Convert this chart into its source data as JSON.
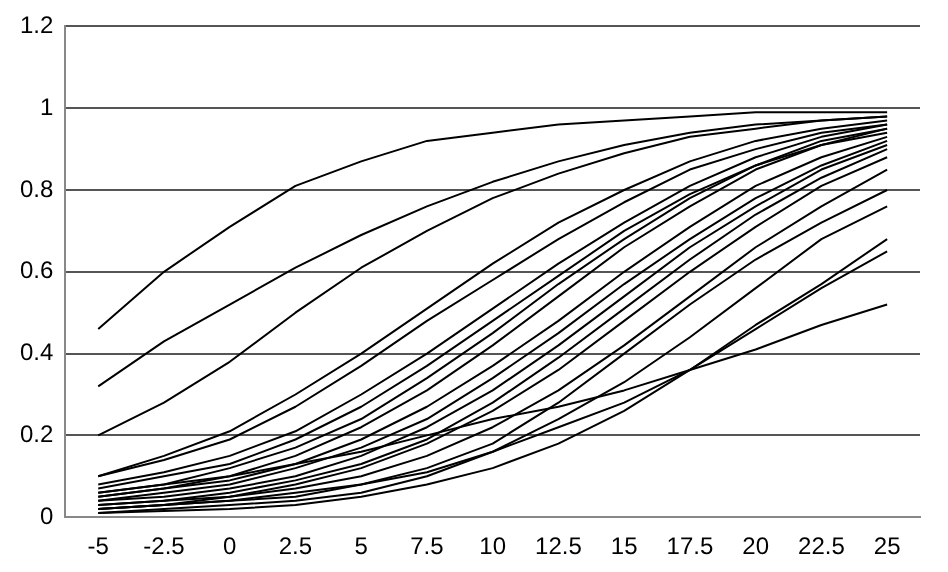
{
  "chart_data": {
    "type": "line",
    "categories": [
      "-5",
      "-2.5",
      "0",
      "2.5",
      "5",
      "7.5",
      "10",
      "12.5",
      "15",
      "17.5",
      "20",
      "22.5",
      "25"
    ],
    "ylim": [
      0,
      1.2
    ],
    "yticks": [
      0,
      0.2,
      0.4,
      0.6,
      0.8,
      1,
      1.2
    ],
    "grid": "y",
    "legend": false,
    "marker": "none",
    "line_style": "solid",
    "series": [
      {
        "color": "#000000",
        "values": [
          0.46,
          0.6,
          0.71,
          0.81,
          0.87,
          0.92,
          0.94,
          0.96,
          0.97,
          0.98,
          0.99,
          0.99,
          0.99
        ]
      },
      {
        "color": "#000000",
        "values": [
          0.32,
          0.43,
          0.52,
          0.61,
          0.69,
          0.76,
          0.82,
          0.87,
          0.91,
          0.94,
          0.96,
          0.97,
          0.98
        ]
      },
      {
        "color": "#000000",
        "values": [
          0.2,
          0.28,
          0.38,
          0.5,
          0.61,
          0.7,
          0.78,
          0.84,
          0.89,
          0.93,
          0.95,
          0.97,
          0.98
        ]
      },
      {
        "color": "#000000",
        "values": [
          0.1,
          0.15,
          0.21,
          0.3,
          0.4,
          0.51,
          0.62,
          0.72,
          0.8,
          0.87,
          0.92,
          0.95,
          0.97
        ]
      },
      {
        "color": "#000000",
        "values": [
          0.1,
          0.14,
          0.19,
          0.27,
          0.37,
          0.48,
          0.58,
          0.68,
          0.77,
          0.85,
          0.9,
          0.94,
          0.96
        ]
      },
      {
        "color": "#000000",
        "values": [
          0.08,
          0.11,
          0.15,
          0.21,
          0.3,
          0.4,
          0.51,
          0.62,
          0.72,
          0.81,
          0.88,
          0.93,
          0.96
        ]
      },
      {
        "color": "#000000",
        "values": [
          0.07,
          0.1,
          0.13,
          0.19,
          0.27,
          0.37,
          0.48,
          0.59,
          0.7,
          0.79,
          0.86,
          0.92,
          0.95
        ]
      },
      {
        "color": "#000000",
        "values": [
          0.06,
          0.08,
          0.12,
          0.17,
          0.24,
          0.34,
          0.45,
          0.57,
          0.68,
          0.78,
          0.86,
          0.91,
          0.95
        ]
      },
      {
        "color": "#000000",
        "values": [
          0.05,
          0.07,
          0.1,
          0.15,
          0.22,
          0.31,
          0.42,
          0.54,
          0.66,
          0.76,
          0.85,
          0.91,
          0.94
        ]
      },
      {
        "color": "#000000",
        "values": [
          0.05,
          0.07,
          0.09,
          0.13,
          0.19,
          0.27,
          0.37,
          0.48,
          0.6,
          0.71,
          0.81,
          0.88,
          0.93
        ]
      },
      {
        "color": "#000000",
        "values": [
          0.04,
          0.06,
          0.08,
          0.12,
          0.17,
          0.24,
          0.34,
          0.45,
          0.57,
          0.68,
          0.78,
          0.86,
          0.92
        ]
      },
      {
        "color": "#000000",
        "values": [
          0.04,
          0.05,
          0.07,
          0.1,
          0.15,
          0.22,
          0.31,
          0.42,
          0.54,
          0.66,
          0.76,
          0.85,
          0.91
        ]
      },
      {
        "color": "#000000",
        "values": [
          0.03,
          0.04,
          0.06,
          0.09,
          0.13,
          0.19,
          0.28,
          0.39,
          0.51,
          0.63,
          0.74,
          0.83,
          0.9
        ]
      },
      {
        "color": "#000000",
        "values": [
          0.03,
          0.04,
          0.05,
          0.08,
          0.12,
          0.18,
          0.26,
          0.36,
          0.48,
          0.6,
          0.71,
          0.81,
          0.88
        ]
      },
      {
        "color": "#000000",
        "values": [
          0.02,
          0.03,
          0.05,
          0.07,
          0.1,
          0.15,
          0.22,
          0.31,
          0.42,
          0.54,
          0.66,
          0.76,
          0.85
        ]
      },
      {
        "color": "#000000",
        "values": [
          0.02,
          0.03,
          0.04,
          0.06,
          0.08,
          0.12,
          0.18,
          0.28,
          0.4,
          0.52,
          0.63,
          0.72,
          0.8
        ]
      },
      {
        "color": "#000000",
        "values": [
          0.01,
          0.02,
          0.03,
          0.04,
          0.06,
          0.1,
          0.16,
          0.24,
          0.33,
          0.44,
          0.56,
          0.68,
          0.76
        ]
      },
      {
        "color": "#000000",
        "values": [
          0.02,
          0.03,
          0.04,
          0.05,
          0.08,
          0.11,
          0.16,
          0.22,
          0.28,
          0.36,
          0.46,
          0.56,
          0.65
        ]
      },
      {
        "color": "#000000",
        "values": [
          0.06,
          0.08,
          0.1,
          0.13,
          0.16,
          0.2,
          0.24,
          0.27,
          0.31,
          0.36,
          0.41,
          0.47,
          0.52
        ]
      },
      {
        "color": "#000000",
        "values": [
          0.01,
          0.015,
          0.02,
          0.03,
          0.05,
          0.08,
          0.12,
          0.18,
          0.26,
          0.36,
          0.47,
          0.57,
          0.68
        ]
      }
    ]
  }
}
